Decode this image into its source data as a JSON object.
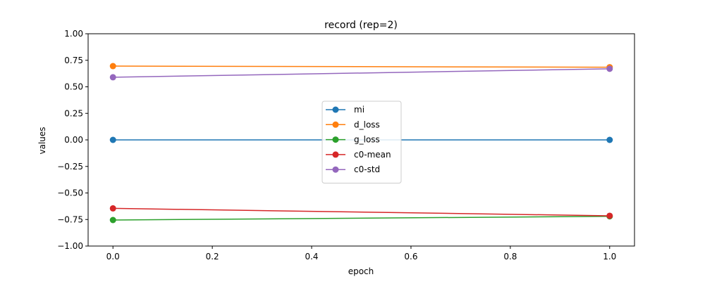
{
  "chart_data": {
    "type": "line",
    "title": "record (rep=2)",
    "xlabel": "epoch",
    "ylabel": "values",
    "xlim": [
      -0.05,
      1.05
    ],
    "ylim": [
      -1.0,
      1.0
    ],
    "x": [
      0.0,
      1.0
    ],
    "xticks": [
      0.0,
      0.2,
      0.4,
      0.6,
      0.8,
      1.0
    ],
    "xtick_labels": [
      "0.0",
      "0.2",
      "0.4",
      "0.6",
      "0.8",
      "1.0"
    ],
    "yticks": [
      1.0,
      0.75,
      0.5,
      0.25,
      0.0,
      -0.25,
      -0.5,
      -0.75,
      -1.0
    ],
    "ytick_labels": [
      "1.00",
      "0.75",
      "0.50",
      "0.25",
      "0.00",
      "−0.25",
      "−0.50",
      "−0.75",
      "−1.00"
    ],
    "grid": false,
    "legend_position": "center",
    "series": [
      {
        "name": "mi",
        "color": "#1f77b4",
        "values": [
          0.0,
          0.0
        ]
      },
      {
        "name": "d_loss",
        "color": "#ff7f0e",
        "values": [
          0.695,
          0.685
        ]
      },
      {
        "name": "g_loss",
        "color": "#2ca02c",
        "values": [
          -0.755,
          -0.72
        ]
      },
      {
        "name": "c0-mean",
        "color": "#d62728",
        "values": [
          -0.645,
          -0.715
        ]
      },
      {
        "name": "c0-std",
        "color": "#9467bd",
        "values": [
          0.59,
          0.67
        ]
      }
    ]
  }
}
